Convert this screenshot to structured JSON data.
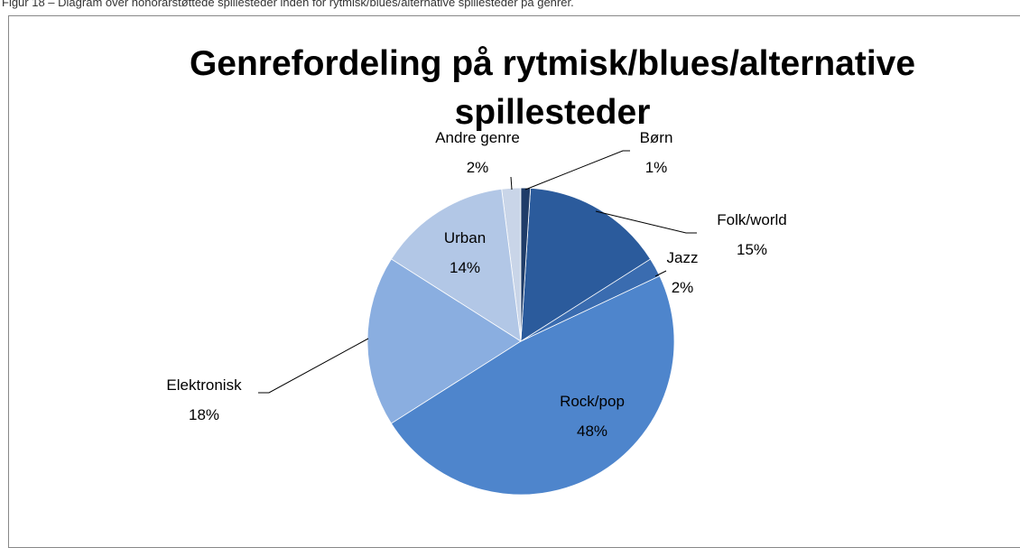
{
  "caption": "Figur 18 – Diagram over honorarstøttede spillesteder inden for rytmisk/blues/alternative spillesteder på genrer.",
  "chart_data": {
    "type": "pie",
    "title": "Genrefordeling på rytmisk/blues/alternative spillesteder",
    "categories": [
      "Børn",
      "Folk/world",
      "Jazz",
      "Rock/pop",
      "Elektronisk",
      "Urban",
      "Andre genre"
    ],
    "values": [
      1,
      15,
      2,
      48,
      18,
      14,
      2
    ],
    "value_labels": [
      "1%",
      "15%",
      "2%",
      "48%",
      "18%",
      "14%",
      "2%"
    ],
    "colors": [
      "#1f3c68",
      "#2b5b9c",
      "#3a6cb0",
      "#4e85cc",
      "#8aaee0",
      "#b2c7e6",
      "#c9d5e8"
    ]
  }
}
